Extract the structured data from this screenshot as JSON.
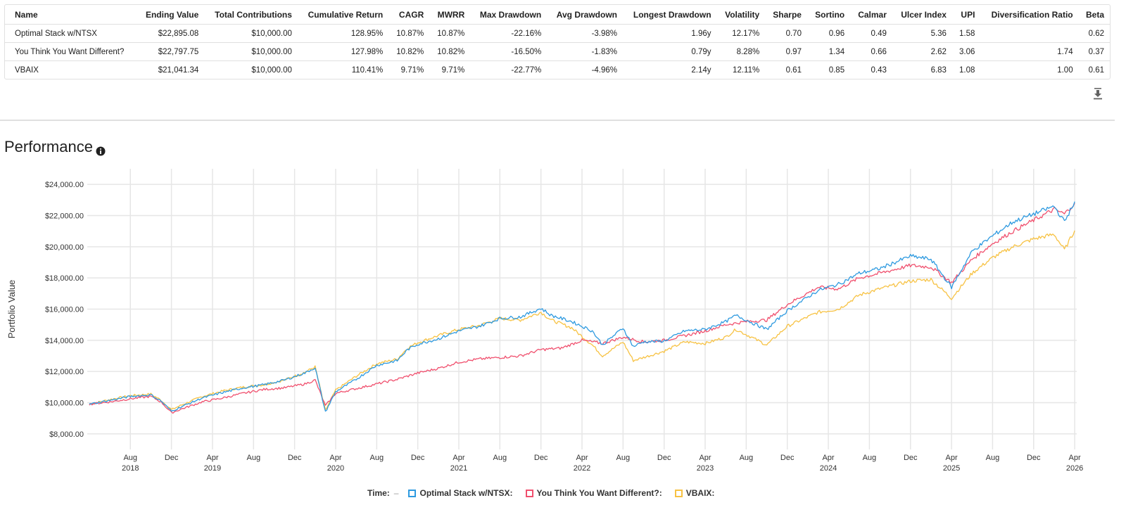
{
  "stats_table": {
    "columns": [
      "Name",
      "Ending Value",
      "Total Contributions",
      "Cumulative Return",
      "CAGR",
      "MWRR",
      "Max Drawdown",
      "Avg Drawdown",
      "Longest Drawdown",
      "Volatility",
      "Sharpe",
      "Sortino",
      "Calmar",
      "Ulcer Index",
      "UPI",
      "Diversification Ratio",
      "Beta"
    ],
    "rows": [
      [
        "Optimal Stack w/NTSX",
        "$22,895.08",
        "$10,000.00",
        "128.95%",
        "10.87%",
        "10.87%",
        "-22.16%",
        "-3.98%",
        "1.96y",
        "12.17%",
        "0.70",
        "0.96",
        "0.49",
        "5.36",
        "1.58",
        "",
        "0.62"
      ],
      [
        "You Think You Want Different?",
        "$22,797.75",
        "$10,000.00",
        "127.98%",
        "10.82%",
        "10.82%",
        "-16.50%",
        "-1.83%",
        "0.79y",
        "8.28%",
        "0.97",
        "1.34",
        "0.66",
        "2.62",
        "3.06",
        "1.74",
        "0.37"
      ],
      [
        "VBAIX",
        "$21,041.34",
        "$10,000.00",
        "110.41%",
        "9.71%",
        "9.71%",
        "-22.77%",
        "-4.96%",
        "2.14y",
        "12.11%",
        "0.61",
        "0.85",
        "0.43",
        "6.83",
        "1.08",
        "1.00",
        "0.61"
      ]
    ]
  },
  "icons": {
    "download": "download-icon",
    "info": "info-icon"
  },
  "section_title": "Performance",
  "chart_data": {
    "type": "line",
    "ylabel": "Portfolio Value",
    "ylim": [
      7000,
      25000
    ],
    "y_ticks": [
      "$8,000.00",
      "$10,000.00",
      "$12,000.00",
      "$14,000.00",
      "$16,000.00",
      "$18,000.00",
      "$20,000.00",
      "$22,000.00",
      "$24,000.00"
    ],
    "y_tick_values": [
      8000,
      10000,
      12000,
      14000,
      16000,
      18000,
      20000,
      22000,
      24000
    ],
    "x_range": [
      "2018-04",
      "2026-04"
    ],
    "x_ticks": [
      {
        "month": "Aug",
        "year": "2018",
        "date": "2018-08"
      },
      {
        "month": "Dec",
        "year": "",
        "date": "2018-12"
      },
      {
        "month": "Apr",
        "year": "2019",
        "date": "2019-04"
      },
      {
        "month": "Aug",
        "year": "",
        "date": "2019-08"
      },
      {
        "month": "Dec",
        "year": "",
        "date": "2019-12"
      },
      {
        "month": "Apr",
        "year": "2020",
        "date": "2020-04"
      },
      {
        "month": "Aug",
        "year": "",
        "date": "2020-08"
      },
      {
        "month": "Dec",
        "year": "",
        "date": "2020-12"
      },
      {
        "month": "Apr",
        "year": "2021",
        "date": "2021-04"
      },
      {
        "month": "Aug",
        "year": "",
        "date": "2021-08"
      },
      {
        "month": "Dec",
        "year": "",
        "date": "2021-12"
      },
      {
        "month": "Apr",
        "year": "2022",
        "date": "2022-04"
      },
      {
        "month": "Aug",
        "year": "",
        "date": "2022-08"
      },
      {
        "month": "Dec",
        "year": "",
        "date": "2022-12"
      },
      {
        "month": "Apr",
        "year": "2023",
        "date": "2023-04"
      },
      {
        "month": "Aug",
        "year": "",
        "date": "2023-08"
      },
      {
        "month": "Dec",
        "year": "",
        "date": "2023-12"
      },
      {
        "month": "Apr",
        "year": "2024",
        "date": "2024-04"
      },
      {
        "month": "Aug",
        "year": "",
        "date": "2024-08"
      },
      {
        "month": "Dec",
        "year": "",
        "date": "2024-12"
      },
      {
        "month": "Apr",
        "year": "2025",
        "date": "2025-04"
      },
      {
        "month": "Aug",
        "year": "",
        "date": "2025-08"
      },
      {
        "month": "Dec",
        "year": "",
        "date": "2025-12"
      },
      {
        "month": "Apr",
        "year": "2026",
        "date": "2026-04"
      }
    ],
    "grid": true,
    "legend": {
      "position": "bottom",
      "time_label": "Time:",
      "time_marker": "–"
    },
    "series": [
      {
        "name": "Optimal Stack w/NTSX:",
        "color": "#2e9ae0",
        "points": [
          [
            "2018-04",
            9900
          ],
          [
            "2018-06",
            10150
          ],
          [
            "2018-08",
            10400
          ],
          [
            "2018-10",
            10500
          ],
          [
            "2018-11",
            10100
          ],
          [
            "2018-12",
            9450
          ],
          [
            "2019-01",
            9750
          ],
          [
            "2019-03",
            10300
          ],
          [
            "2019-05",
            10650
          ],
          [
            "2019-07",
            10950
          ],
          [
            "2019-09",
            11150
          ],
          [
            "2019-11",
            11450
          ],
          [
            "2020-01",
            11900
          ],
          [
            "2020-02",
            12250
          ],
          [
            "2020-03",
            9400
          ],
          [
            "2020-04",
            10700
          ],
          [
            "2020-06",
            11500
          ],
          [
            "2020-08",
            12400
          ],
          [
            "2020-10",
            12700
          ],
          [
            "2020-11",
            13400
          ],
          [
            "2020-12",
            13750
          ],
          [
            "2021-02",
            14100
          ],
          [
            "2021-04",
            14600
          ],
          [
            "2021-06",
            14900
          ],
          [
            "2021-08",
            15400
          ],
          [
            "2021-10",
            15500
          ],
          [
            "2021-12",
            16050
          ],
          [
            "2022-01",
            15600
          ],
          [
            "2022-03",
            15200
          ],
          [
            "2022-05",
            14600
          ],
          [
            "2022-06",
            13700
          ],
          [
            "2022-08",
            14800
          ],
          [
            "2022-09",
            13600
          ],
          [
            "2022-10",
            13900
          ],
          [
            "2022-12",
            13950
          ],
          [
            "2023-02",
            14600
          ],
          [
            "2023-04",
            14700
          ],
          [
            "2023-06",
            15200
          ],
          [
            "2023-07",
            15600
          ],
          [
            "2023-10",
            14700
          ],
          [
            "2023-12",
            15900
          ],
          [
            "2024-03",
            17200
          ],
          [
            "2024-05",
            17600
          ],
          [
            "2024-07",
            18300
          ],
          [
            "2024-09",
            18600
          ],
          [
            "2024-12",
            19400
          ],
          [
            "2025-02",
            19200
          ],
          [
            "2025-04",
            17400
          ],
          [
            "2025-06",
            19700
          ],
          [
            "2025-08",
            20700
          ],
          [
            "2025-10",
            21600
          ],
          [
            "2025-12",
            22100
          ],
          [
            "2026-02",
            22600
          ],
          [
            "2026-03",
            21600
          ],
          [
            "2026-04",
            22895
          ]
        ]
      },
      {
        "name": "You Think You Want Different?:",
        "color": "#f0506e",
        "points": [
          [
            "2018-04",
            9900
          ],
          [
            "2018-06",
            10050
          ],
          [
            "2018-08",
            10250
          ],
          [
            "2018-10",
            10400
          ],
          [
            "2018-11",
            10050
          ],
          [
            "2018-12",
            9350
          ],
          [
            "2019-01",
            9600
          ],
          [
            "2019-03",
            10050
          ],
          [
            "2019-05",
            10300
          ],
          [
            "2019-07",
            10600
          ],
          [
            "2019-09",
            10850
          ],
          [
            "2019-11",
            10950
          ],
          [
            "2020-01",
            11200
          ],
          [
            "2020-02",
            11450
          ],
          [
            "2020-03",
            9800
          ],
          [
            "2020-04",
            10600
          ],
          [
            "2020-06",
            10900
          ],
          [
            "2020-08",
            11200
          ],
          [
            "2020-10",
            11500
          ],
          [
            "2020-12",
            11900
          ],
          [
            "2021-02",
            12200
          ],
          [
            "2021-04",
            12600
          ],
          [
            "2021-06",
            12800
          ],
          [
            "2021-08",
            12900
          ],
          [
            "2021-10",
            13000
          ],
          [
            "2021-12",
            13400
          ],
          [
            "2022-02",
            13500
          ],
          [
            "2022-04",
            14000
          ],
          [
            "2022-06",
            13800
          ],
          [
            "2022-08",
            14200
          ],
          [
            "2022-10",
            13900
          ],
          [
            "2022-12",
            14000
          ],
          [
            "2023-02",
            14300
          ],
          [
            "2023-04",
            14600
          ],
          [
            "2023-06",
            15000
          ],
          [
            "2023-08",
            15200
          ],
          [
            "2023-10",
            15300
          ],
          [
            "2023-12",
            16300
          ],
          [
            "2024-03",
            17400
          ],
          [
            "2024-05",
            17300
          ],
          [
            "2024-07",
            18000
          ],
          [
            "2024-09",
            18300
          ],
          [
            "2024-12",
            18800
          ],
          [
            "2025-02",
            18700
          ],
          [
            "2025-04",
            17700
          ],
          [
            "2025-06",
            19200
          ],
          [
            "2025-08",
            20200
          ],
          [
            "2025-10",
            21000
          ],
          [
            "2025-12",
            21700
          ],
          [
            "2026-02",
            22400
          ],
          [
            "2026-03",
            22100
          ],
          [
            "2026-04",
            22798
          ]
        ]
      },
      {
        "name": "VBAIX:",
        "color": "#f7c243",
        "points": [
          [
            "2018-04",
            9900
          ],
          [
            "2018-06",
            10200
          ],
          [
            "2018-08",
            10450
          ],
          [
            "2018-10",
            10550
          ],
          [
            "2018-11",
            10150
          ],
          [
            "2018-12",
            9550
          ],
          [
            "2019-01",
            9850
          ],
          [
            "2019-03",
            10400
          ],
          [
            "2019-05",
            10750
          ],
          [
            "2019-07",
            11000
          ],
          [
            "2019-09",
            11150
          ],
          [
            "2019-11",
            11450
          ],
          [
            "2020-01",
            11950
          ],
          [
            "2020-02",
            12300
          ],
          [
            "2020-03",
            9500
          ],
          [
            "2020-04",
            10800
          ],
          [
            "2020-06",
            11700
          ],
          [
            "2020-08",
            12500
          ],
          [
            "2020-10",
            12800
          ],
          [
            "2020-11",
            13500
          ],
          [
            "2020-12",
            13850
          ],
          [
            "2021-02",
            14300
          ],
          [
            "2021-04",
            14700
          ],
          [
            "2021-06",
            14950
          ],
          [
            "2021-08",
            15400
          ],
          [
            "2021-10",
            15300
          ],
          [
            "2021-12",
            15800
          ],
          [
            "2022-01",
            15300
          ],
          [
            "2022-03",
            14800
          ],
          [
            "2022-05",
            13700
          ],
          [
            "2022-06",
            13000
          ],
          [
            "2022-08",
            13900
          ],
          [
            "2022-09",
            12700
          ],
          [
            "2022-10",
            12900
          ],
          [
            "2022-12",
            13300
          ],
          [
            "2023-02",
            13900
          ],
          [
            "2023-04",
            13800
          ],
          [
            "2023-06",
            14200
          ],
          [
            "2023-07",
            14700
          ],
          [
            "2023-10",
            13700
          ],
          [
            "2023-12",
            14900
          ],
          [
            "2024-03",
            15800
          ],
          [
            "2024-05",
            16000
          ],
          [
            "2024-07",
            16900
          ],
          [
            "2024-09",
            17300
          ],
          [
            "2024-12",
            17800
          ],
          [
            "2025-02",
            17900
          ],
          [
            "2025-04",
            16700
          ],
          [
            "2025-06",
            18300
          ],
          [
            "2025-08",
            19300
          ],
          [
            "2025-10",
            20000
          ],
          [
            "2025-12",
            20500
          ],
          [
            "2026-02",
            20800
          ],
          [
            "2026-03",
            19800
          ],
          [
            "2026-04",
            21041
          ]
        ]
      }
    ]
  }
}
